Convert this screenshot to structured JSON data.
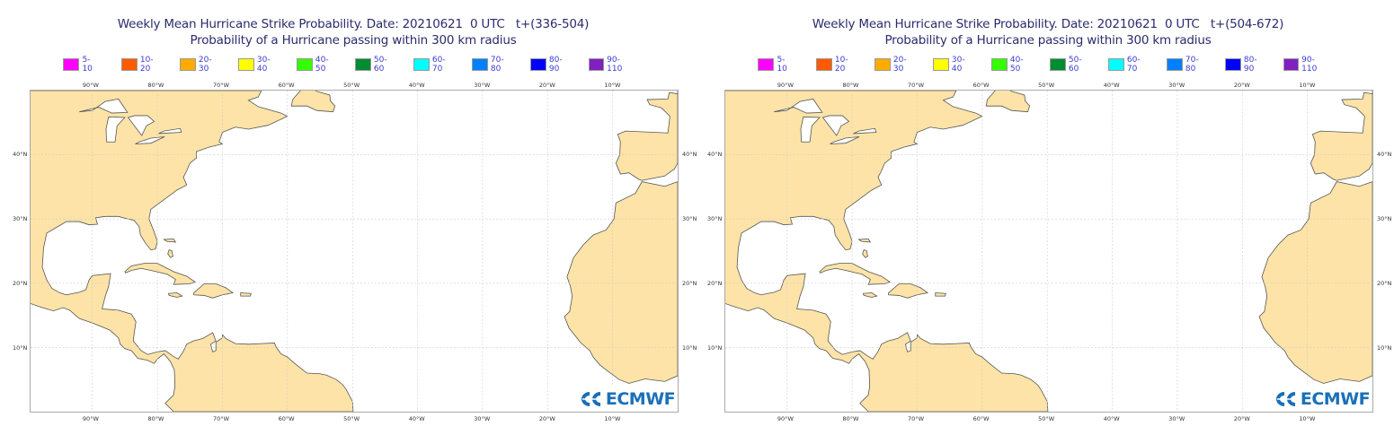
{
  "panels": [
    {
      "title": "Weekly Mean Hurricane Strike Probability. Date: 20210621  0 UTC   t+(336-504)",
      "subtitle": "Probability of a Hurricane passing within 300 km radius"
    },
    {
      "title": "Weekly Mean Hurricane Strike Probability. Date: 20210621  0 UTC   t+(504-672)",
      "subtitle": "Probability of a Hurricane passing within 300 km radius"
    }
  ],
  "legend": [
    {
      "label": "5-10",
      "color": "#ff00ff"
    },
    {
      "label": "10-20",
      "color": "#ff5a00"
    },
    {
      "label": "20-30",
      "color": "#ffab00"
    },
    {
      "label": "30-40",
      "color": "#ffff00"
    },
    {
      "label": "40-50",
      "color": "#33ff00"
    },
    {
      "label": "50-60",
      "color": "#008c30"
    },
    {
      "label": "60-70",
      "color": "#00ffff"
    },
    {
      "label": "70-80",
      "color": "#0080ff"
    },
    {
      "label": "80-90",
      "color": "#0000ff"
    },
    {
      "label": "90-110",
      "color": "#8020c0"
    }
  ],
  "lon_ticks": [
    "90°W",
    "80°W",
    "70°W",
    "60°W",
    "50°W",
    "40°W",
    "30°W",
    "20°W",
    "10°W"
  ],
  "lat_ticks": [
    "40°N",
    "30°N",
    "20°N",
    "10°N"
  ],
  "logo_text": "ECMWF",
  "colors": {
    "land": "#fde3a7",
    "sea": "#ffffff",
    "coast": "#555555",
    "title": "#2b2b6e",
    "legend_text": "#3a3ad0",
    "logo": "#1a70b8"
  },
  "chart_data": [
    {
      "type": "map",
      "title": "Weekly Mean Hurricane Strike Probability. Date: 20210621  0 UTC   t+(336-504)",
      "subtitle": "Probability of a Hurricane passing within 300 km radius",
      "lon_range": [
        -100,
        0
      ],
      "lat_range": [
        0,
        50
      ],
      "grid": true,
      "probability_areas": []
    },
    {
      "type": "map",
      "title": "Weekly Mean Hurricane Strike Probability. Date: 20210621  0 UTC   t+(504-672)",
      "subtitle": "Probability of a Hurricane passing within 300 km radius",
      "lon_range": [
        -100,
        0
      ],
      "lat_range": [
        0,
        50
      ],
      "grid": true,
      "probability_areas": []
    }
  ]
}
